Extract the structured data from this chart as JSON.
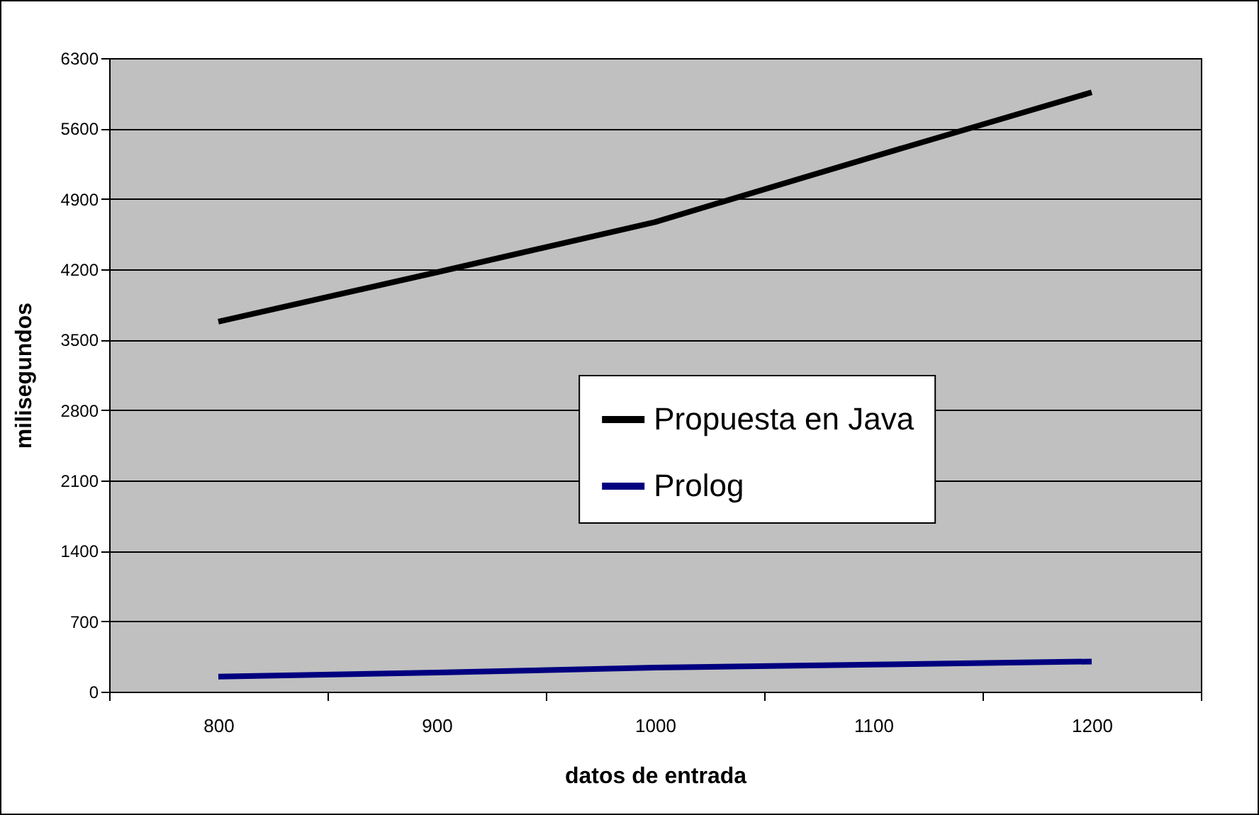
{
  "chart_data": {
    "type": "line",
    "xlabel": "datos de entrada",
    "ylabel": "milisegundos",
    "categories": [
      "800",
      "900",
      "1000",
      "1100",
      "1200"
    ],
    "series": [
      {
        "name": "Propuesta en Java",
        "color": "#000000",
        "values": [
          3680,
          4170,
          4670,
          5320,
          5960
        ]
      },
      {
        "name": "Prolog",
        "color": "#000080",
        "values": [
          150,
          190,
          240,
          270,
          300
        ]
      }
    ],
    "ylim": [
      0,
      6300
    ],
    "yticks": [
      0,
      700,
      1400,
      2100,
      2800,
      3500,
      4200,
      4900,
      5600,
      6300
    ],
    "grid": "y",
    "legend": "center",
    "marker": "none",
    "line_style": "solid"
  }
}
